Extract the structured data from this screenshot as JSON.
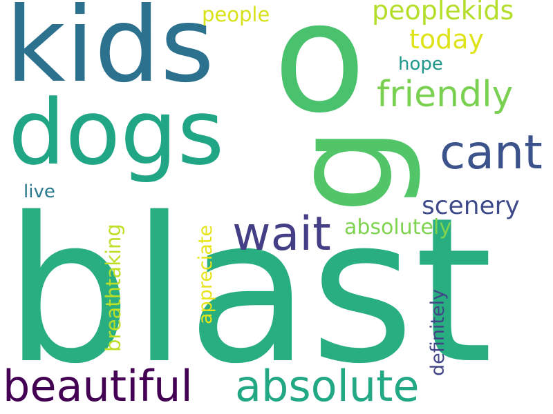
{
  "word_cloud": {
    "background": "#ffffff",
    "words": [
      {
        "id": "blast",
        "text": "blast",
        "color": "#28ae80",
        "rotated": false
      },
      {
        "id": "kids",
        "text": "kids",
        "color": "#2c718e",
        "rotated": false
      },
      {
        "id": "o",
        "text": "o",
        "color": "#4ac16d",
        "rotated": false
      },
      {
        "id": "dogs",
        "text": "dogs",
        "color": "#21a685",
        "rotated": false
      },
      {
        "id": "g",
        "text": "g",
        "color": "#52c569",
        "rotated": true
      },
      {
        "id": "cant",
        "text": "cant",
        "color": "#3b528b",
        "rotated": false
      },
      {
        "id": "wait",
        "text": "wait",
        "color": "#433e85",
        "rotated": false
      },
      {
        "id": "beautiful",
        "text": "beautiful",
        "color": "#440154",
        "rotated": false
      },
      {
        "id": "absolute",
        "text": "absolute",
        "color": "#22a884",
        "rotated": false
      },
      {
        "id": "friendly",
        "text": "friendly",
        "color": "#7ad151",
        "rotated": false
      },
      {
        "id": "peoplekids",
        "text": "peoplekids",
        "color": "#b5de2b",
        "rotated": false
      },
      {
        "id": "today",
        "text": "today",
        "color": "#dde318",
        "rotated": false
      },
      {
        "id": "people",
        "text": "people",
        "color": "#d8e219",
        "rotated": false
      },
      {
        "id": "hope",
        "text": "hope",
        "color": "#1f988b",
        "rotated": false
      },
      {
        "id": "scenery",
        "text": "scenery",
        "color": "#3e4a89",
        "rotated": false
      },
      {
        "id": "absolutely",
        "text": "absolutely",
        "color": "#7fd34e",
        "rotated": false
      },
      {
        "id": "live",
        "text": "live",
        "color": "#2a788e",
        "rotated": false
      },
      {
        "id": "breathtaking",
        "text": "breathtaking",
        "color": "#bddf26",
        "rotated": true
      },
      {
        "id": "appreciate",
        "text": "appreciate",
        "color": "#e5e419",
        "rotated": true
      },
      {
        "id": "definitely",
        "text": "definitely",
        "color": "#414487",
        "rotated": true
      }
    ]
  }
}
